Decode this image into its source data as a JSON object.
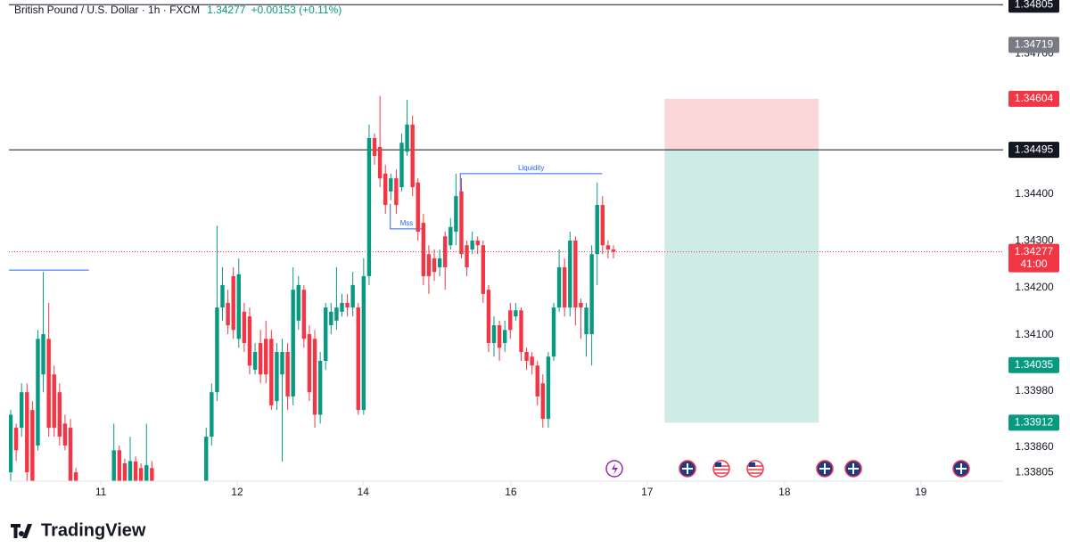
{
  "chart_data": {
    "type": "candlestick",
    "title": "British Pound / U.S. Dollar · 1h · FXCM",
    "last": 1.34277,
    "change": "+0.00153 (+0.11%)",
    "countdown": "41:00",
    "up_color": "#089981",
    "down_color": "#f23645",
    "x": [
      0,
      1,
      2,
      3,
      4,
      5,
      6,
      7,
      8,
      9,
      10,
      11,
      12,
      19,
      20,
      21,
      22,
      23,
      24,
      25,
      26,
      36,
      37,
      38,
      39,
      40,
      41,
      42,
      43,
      44,
      45,
      46,
      47,
      48,
      49,
      50,
      51,
      52,
      53,
      54,
      55,
      56,
      57,
      58,
      59,
      60,
      61,
      62,
      63,
      64,
      65,
      66,
      67,
      68,
      69,
      70,
      71,
      72,
      73,
      74,
      75,
      76,
      77,
      78,
      79,
      80,
      81,
      82,
      83,
      84,
      85,
      86,
      87,
      88,
      89,
      90,
      91,
      92,
      93,
      94,
      95,
      96,
      97,
      98,
      99,
      100,
      101,
      102,
      103,
      104,
      105,
      106,
      107,
      108,
      109,
      110,
      111
    ],
    "open": [
      1.33806,
      1.33901,
      1.33901,
      1.33977,
      1.33939,
      1.33863,
      1.34015,
      1.34091,
      1.34015,
      1.33977,
      1.3391,
      1.33901,
      1.33806,
      1.33787,
      1.33853,
      1.33825,
      1.33787,
      1.33829,
      1.33815,
      1.33787,
      1.33815,
      1.33787,
      1.33882,
      1.33977,
      1.34158,
      1.34168,
      1.34225,
      1.34091,
      1.34149,
      1.34139,
      1.34025,
      1.34082,
      1.34091,
      1.34091,
      1.33958,
      1.34015,
      1.34063,
      1.33968,
      1.3413,
      1.34196,
      1.34101,
      1.34091,
      1.33929,
      1.34044,
      1.3412,
      1.3413,
      1.34149,
      1.34168,
      1.34158,
      1.34158,
      1.33939,
      1.34225,
      1.3452,
      1.34501,
      1.34444,
      1.34406,
      1.34434,
      1.34415,
      1.34491,
      1.34549,
      1.34425,
      1.34339,
      1.34272,
      1.34263,
      1.34244,
      1.3431,
      1.34291,
      1.3432,
      1.34406,
      1.34291,
      1.34282,
      1.34301,
      1.34291,
      1.34196,
      1.34082,
      1.3412,
      1.34082,
      1.34152,
      1.34139,
      1.34152,
      1.34063,
      1.34053,
      1.34034,
      1.33996,
      1.3392,
      1.34053,
      1.34158,
      1.34244,
      1.34158,
      1.34301,
      1.34168,
      1.34101,
      1.34101,
      1.34272,
      1.34377,
      1.34291,
      1.34282
    ],
    "high": [
      1.33939,
      1.3391,
      1.33996,
      1.33996,
      1.33958,
      1.3411,
      1.34234,
      1.34168,
      1.34034,
      1.33996,
      1.33929,
      1.3392,
      1.33815,
      1.3391,
      1.33863,
      1.33835,
      1.33882,
      1.3384,
      1.33825,
      1.3391,
      1.3383,
      1.33901,
      1.33996,
      1.34333,
      1.34244,
      1.34196,
      1.34244,
      1.34263,
      1.34168,
      1.34158,
      1.34082,
      1.3411,
      1.3413,
      1.3411,
      1.34082,
      1.34091,
      1.34082,
      1.34244,
      1.34225,
      1.34206,
      1.3412,
      1.3411,
      1.34063,
      1.34168,
      1.34168,
      1.34244,
      1.34187,
      1.34187,
      1.34234,
      1.34168,
      1.34263,
      1.34549,
      1.3453,
      1.3461,
      1.34463,
      1.34444,
      1.34453,
      1.3453,
      1.34602,
      1.34568,
      1.34434,
      1.34358,
      1.34291,
      1.34282,
      1.34282,
      1.3432,
      1.34349,
      1.34444,
      1.34434,
      1.34301,
      1.3432,
      1.3431,
      1.34301,
      1.34206,
      1.34139,
      1.3413,
      1.3413,
      1.34168,
      1.34168,
      1.34158,
      1.34072,
      1.34063,
      1.34044,
      1.34015,
      1.34063,
      1.34168,
      1.34282,
      1.34263,
      1.3432,
      1.3431,
      1.34177,
      1.34168,
      1.34291,
      1.34425,
      1.34396,
      1.34301,
      1.34291
    ],
    "low": [
      1.33787,
      1.3383,
      1.33882,
      1.33787,
      1.33768,
      1.33853,
      1.33977,
      1.33882,
      1.33882,
      1.33863,
      1.33853,
      1.33768,
      1.33768,
      1.33768,
      1.33768,
      1.3376,
      1.33777,
      1.33768,
      1.33768,
      1.33768,
      1.3376,
      1.33768,
      1.33863,
      1.33958,
      1.3413,
      1.34101,
      1.34091,
      1.34072,
      1.34063,
      1.34015,
      1.34015,
      1.33996,
      1.33996,
      1.33939,
      1.33939,
      1.33829,
      1.33939,
      1.33949,
      1.3411,
      1.34072,
      1.33958,
      1.33901,
      1.3391,
      1.34025,
      1.34101,
      1.3411,
      1.34139,
      1.34139,
      1.34139,
      1.33929,
      1.33929,
      1.34206,
      1.34463,
      1.34415,
      1.34358,
      1.34387,
      1.34358,
      1.34406,
      1.34482,
      1.34396,
      1.34301,
      1.34206,
      1.34187,
      1.34215,
      1.34225,
      1.34196,
      1.34282,
      1.34291,
      1.34263,
      1.34225,
      1.34272,
      1.34272,
      1.34168,
      1.34063,
      1.34053,
      1.34044,
      1.34063,
      1.34091,
      1.3413,
      1.34044,
      1.34025,
      1.34015,
      1.33949,
      1.33901,
      1.33901,
      1.34044,
      1.34149,
      1.34139,
      1.34139,
      1.3412,
      1.34091,
      1.34053,
      1.34034,
      1.34206,
      1.34272,
      1.34263,
      1.34263
    ],
    "close": [
      1.33929,
      1.33853,
      1.33977,
      1.33806,
      1.33787,
      1.34091,
      1.34101,
      1.33901,
      1.33901,
      1.33882,
      1.33863,
      1.33787,
      1.33777,
      1.33853,
      1.33787,
      1.33777,
      1.3383,
      1.33787,
      1.33787,
      1.33821,
      1.33777,
      1.33882,
      1.33977,
      1.34158,
      1.34206,
      1.3412,
      1.3411,
      1.34229,
      1.34082,
      1.34034,
      1.34063,
      1.34015,
      1.34015,
      1.33949,
      1.34063,
      1.34063,
      1.33968,
      1.34196,
      1.34206,
      1.34091,
      1.33977,
      1.33929,
      1.34044,
      1.34158,
      1.34149,
      1.34158,
      1.34168,
      1.34158,
      1.34206,
      1.33939,
      1.34225,
      1.3452,
      1.34482,
      1.34434,
      1.34377,
      1.34434,
      1.34377,
      1.3451,
      1.34549,
      1.34415,
      1.3432,
      1.34225,
      1.34225,
      1.34234,
      1.34263,
      1.34244,
      1.3433,
      1.34396,
      1.34272,
      1.34244,
      1.34301,
      1.34291,
      1.34187,
      1.34082,
      1.3412,
      1.34072,
      1.3411,
      1.3411,
      1.34152,
      1.34063,
      1.34044,
      1.34034,
      1.33968,
      1.3392,
      1.34053,
      1.34158,
      1.34244,
      1.34158,
      1.34301,
      1.34158,
      1.34158,
      1.34158,
      1.34272,
      1.34377,
      1.34291,
      1.34282,
      1.34277
    ],
    "xlim": [
      -0.33,
      182.76
    ],
    "xticks": [
      {
        "value": 16.6,
        "label": "11"
      },
      {
        "value": 41.7,
        "label": "12"
      },
      {
        "value": 64.9,
        "label": "14"
      },
      {
        "value": 92.1,
        "label": "16"
      },
      {
        "value": 117.2,
        "label": "17"
      },
      {
        "value": 142.5,
        "label": "18"
      },
      {
        "value": 167.6,
        "label": "19"
      }
    ],
    "ylim": [
      1.33787,
      1.34815
    ],
    "yticks": [
      {
        "value": 1.347,
        "label": "1.34700"
      },
      {
        "value": 1.344,
        "label": "1.34400"
      },
      {
        "value": 1.343,
        "label": "1.34300"
      },
      {
        "value": 1.342,
        "label": "1.34200"
      },
      {
        "value": 1.341,
        "label": "1.34100"
      },
      {
        "value": 1.3398,
        "label": "1.33980"
      },
      {
        "value": 1.3386,
        "label": "1.33860"
      },
      {
        "value": 1.33805,
        "label": "1.33805"
      }
    ],
    "price_labels": [
      {
        "value": 1.34805,
        "color": "#131722"
      },
      {
        "value": 1.34719,
        "color": "#787b86"
      },
      {
        "value": 1.34604,
        "color": "#f23645"
      },
      {
        "value": 1.34495,
        "color": "#787b86"
      },
      {
        "value": 1.34495,
        "color": "#131722"
      },
      {
        "value": 1.34035,
        "color": "#089981"
      },
      {
        "value": 1.33912,
        "color": "#089981"
      }
    ],
    "hlines": [
      {
        "value": 1.34805,
        "color": "#131722"
      },
      {
        "value": 1.34495,
        "color": "#131722"
      },
      {
        "value": 1.34238,
        "color": "#2962ff",
        "x": [
          -0.33,
          14.4
        ]
      }
    ],
    "position": {
      "entry": 1.34495,
      "stop": 1.34604,
      "target": 1.33912,
      "x": [
        120.4,
        148.8
      ]
    },
    "annotations": [
      {
        "text": "Liquidity",
        "value": 1.34444,
        "x": [
          82.8,
          108.9
        ]
      },
      {
        "text": "Mss",
        "value": 1.34326,
        "x": [
          69.9,
          75.9
        ]
      }
    ],
    "brand": "TradingView"
  }
}
